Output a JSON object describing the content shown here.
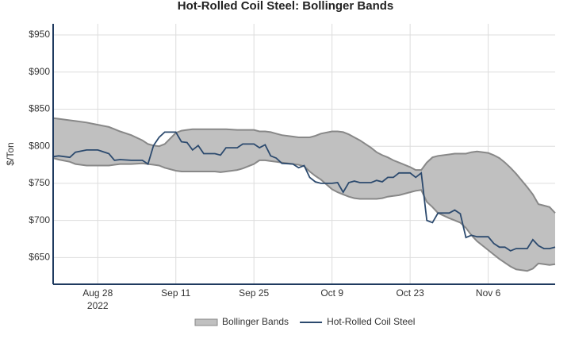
{
  "chart_data": {
    "type": "bollinger",
    "title": "Hot-Rolled Coil Steel: Bollinger Bands",
    "y_label": "$/Ton",
    "x_year_label": "2022",
    "x": [
      "2022-08-20",
      "2022-08-21",
      "2022-08-23",
      "2022-08-24",
      "2022-08-26",
      "2022-08-28",
      "2022-08-30",
      "2022-08-31",
      "2022-09-01",
      "2022-09-03",
      "2022-09-05",
      "2022-09-06",
      "2022-09-07",
      "2022-09-08",
      "2022-09-09",
      "2022-09-11",
      "2022-09-12",
      "2022-09-13",
      "2022-09-14",
      "2022-09-15",
      "2022-09-16",
      "2022-09-18",
      "2022-09-19",
      "2022-09-20",
      "2022-09-22",
      "2022-09-23",
      "2022-09-25",
      "2022-09-26",
      "2022-09-27",
      "2022-09-28",
      "2022-09-29",
      "2022-09-30",
      "2022-10-02",
      "2022-10-03",
      "2022-10-04",
      "2022-10-05",
      "2022-10-06",
      "2022-10-07",
      "2022-10-09",
      "2022-10-10",
      "2022-10-11",
      "2022-10-12",
      "2022-10-13",
      "2022-10-14",
      "2022-10-16",
      "2022-10-17",
      "2022-10-18",
      "2022-10-19",
      "2022-10-20",
      "2022-10-21",
      "2022-10-23",
      "2022-10-24",
      "2022-10-25",
      "2022-10-26",
      "2022-10-27",
      "2022-10-28",
      "2022-10-30",
      "2022-10-31",
      "2022-11-01",
      "2022-11-02",
      "2022-11-03",
      "2022-11-04",
      "2022-11-06",
      "2022-11-07",
      "2022-11-08",
      "2022-11-09",
      "2022-11-10",
      "2022-11-11",
      "2022-11-13",
      "2022-11-14",
      "2022-11-15",
      "2022-11-16",
      "2022-11-17",
      "2022-11-18"
    ],
    "series": [
      {
        "name": "Bollinger Bands",
        "kind": "band",
        "color": "#c0c0c0",
        "line_color": "#888888",
        "upper": [
          838,
          837,
          835,
          834,
          832,
          829,
          826,
          823,
          820,
          815,
          808,
          803,
          801,
          800,
          803,
          818,
          821,
          822,
          823,
          823,
          823,
          823,
          823,
          823,
          822,
          822,
          822,
          820,
          820,
          819,
          817,
          815,
          813,
          812,
          812,
          812,
          814,
          817,
          820,
          820,
          819,
          816,
          812,
          808,
          798,
          792,
          788,
          785,
          781,
          778,
          772,
          768,
          768,
          778,
          785,
          787,
          789,
          790,
          790,
          790,
          792,
          793,
          791,
          788,
          784,
          778,
          771,
          763,
          745,
          735,
          722,
          720,
          718,
          710
        ],
        "lower": [
          784,
          782,
          779,
          776,
          774,
          774,
          774,
          775,
          776,
          776,
          777,
          776,
          775,
          774,
          771,
          767,
          766,
          766,
          766,
          766,
          766,
          766,
          765,
          766,
          768,
          770,
          776,
          781,
          781,
          780,
          779,
          778,
          776,
          775,
          773,
          766,
          760,
          755,
          742,
          738,
          735,
          732,
          730,
          729,
          729,
          729,
          730,
          732,
          733,
          734,
          738,
          740,
          741,
          725,
          718,
          710,
          703,
          700,
          697,
          690,
          680,
          672,
          660,
          654,
          648,
          643,
          638,
          634,
          632,
          635,
          642,
          641,
          640,
          641
        ]
      },
      {
        "name": "Hot-Rolled Coil Steel",
        "kind": "line",
        "color": "#2c4a6e",
        "values": [
          786,
          787,
          785,
          792,
          795,
          795,
          790,
          781,
          782,
          781,
          781,
          776,
          801,
          812,
          819,
          819,
          806,
          805,
          795,
          801,
          790,
          790,
          788,
          798,
          798,
          803,
          803,
          798,
          802,
          787,
          784,
          777,
          776,
          771,
          774,
          758,
          752,
          750,
          750,
          751,
          738,
          751,
          753,
          751,
          751,
          754,
          752,
          758,
          758,
          764,
          764,
          758,
          764,
          700,
          697,
          710,
          710,
          714,
          709,
          677,
          680,
          678,
          678,
          669,
          664,
          664,
          659,
          662,
          662,
          674,
          666,
          662,
          662,
          664
        ]
      }
    ],
    "xlim": [
      "2022-08-20",
      "2022-11-18"
    ],
    "xticks": [
      {
        "value": "2022-08-28",
        "label": "Aug 28"
      },
      {
        "value": "2022-09-11",
        "label": "Sep 11"
      },
      {
        "value": "2022-09-25",
        "label": "Sep 25"
      },
      {
        "value": "2022-10-09",
        "label": "Oct 9"
      },
      {
        "value": "2022-10-23",
        "label": "Oct 23"
      },
      {
        "value": "2022-11-06",
        "label": "Nov 6"
      }
    ],
    "ylim": [
      614,
      965
    ],
    "yticks": [
      {
        "value": 650,
        "label": "$650"
      },
      {
        "value": 700,
        "label": "$700"
      },
      {
        "value": 750,
        "label": "$750"
      },
      {
        "value": 800,
        "label": "$800"
      },
      {
        "value": 850,
        "label": "$850"
      },
      {
        "value": 900,
        "label": "$900"
      },
      {
        "value": 950,
        "label": "$950"
      }
    ],
    "grid": true,
    "legend": "bottom"
  }
}
